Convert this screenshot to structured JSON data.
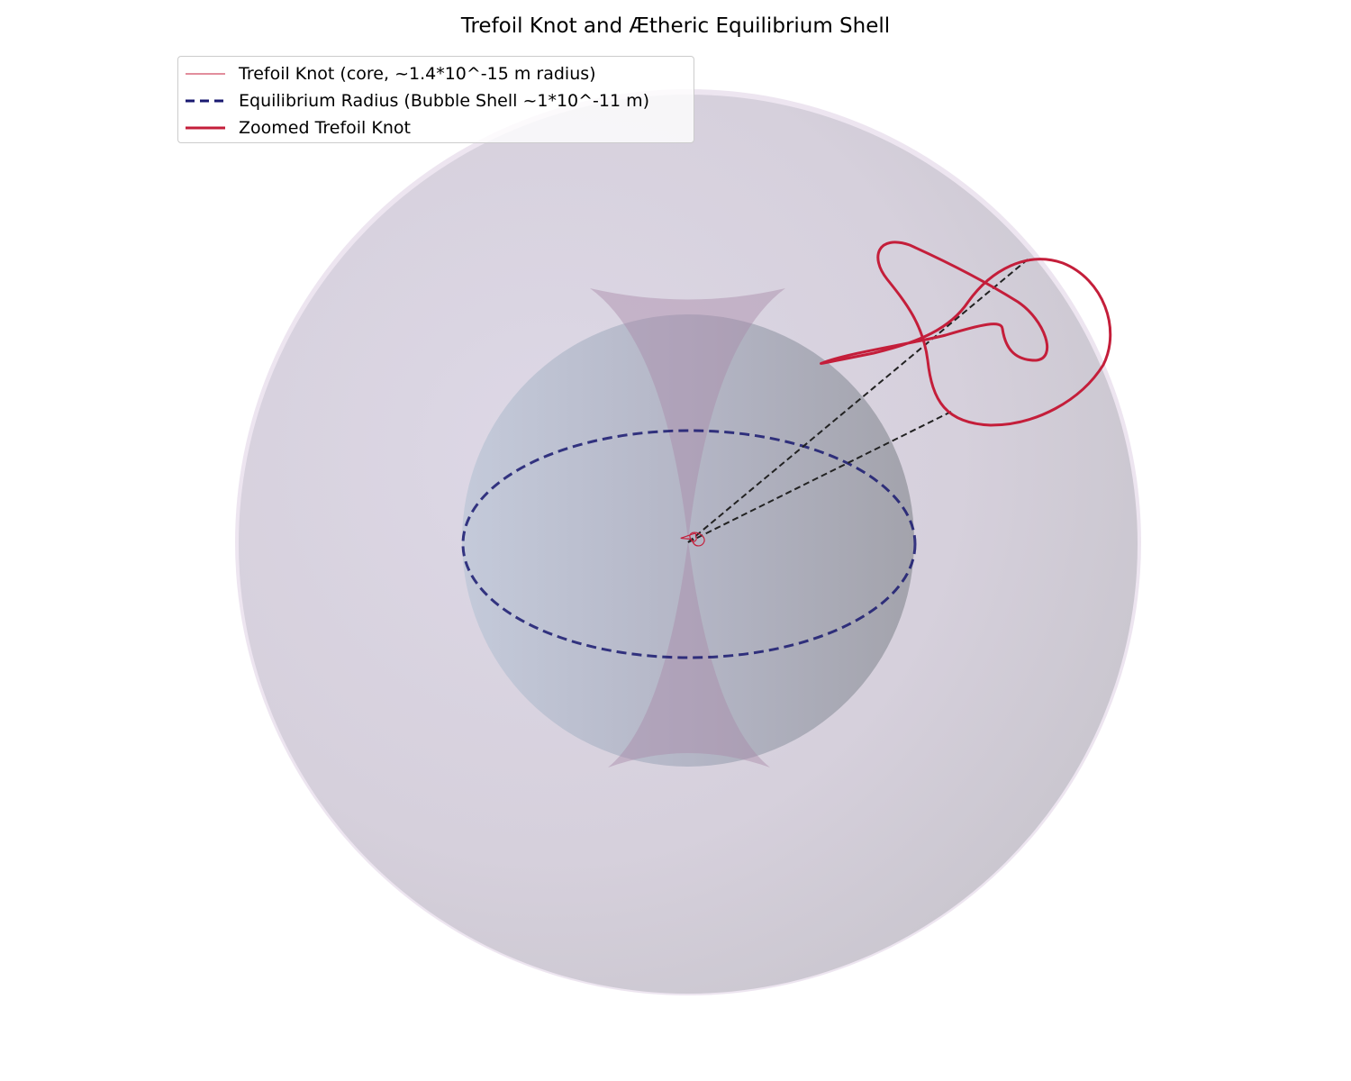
{
  "title": "Trefoil Knot and Ætheric Equilibrium Shell",
  "legend": [
    {
      "label": "Trefoil Knot (core, ~1.4*10^-15 m radius)",
      "color": "#c41e3a",
      "style": "thin-solid"
    },
    {
      "label": "Equilibrium Radius (Bubble Shell ~1*10^-11 m)",
      "color": "#191970",
      "style": "dashed"
    },
    {
      "label": "Zoomed Trefoil Knot",
      "color": "#c41e3a",
      "style": "solid"
    }
  ],
  "colors": {
    "trefoil": "#c41e3a",
    "equilibrium": "#191970",
    "outer_shell": "#d9d2e2",
    "inner_sphere": "#b8bccb",
    "lens": "#a98aa8",
    "connector": "#222222"
  },
  "icons": [
    "trefoil-knot-icon",
    "zoom-connector-lines"
  ]
}
